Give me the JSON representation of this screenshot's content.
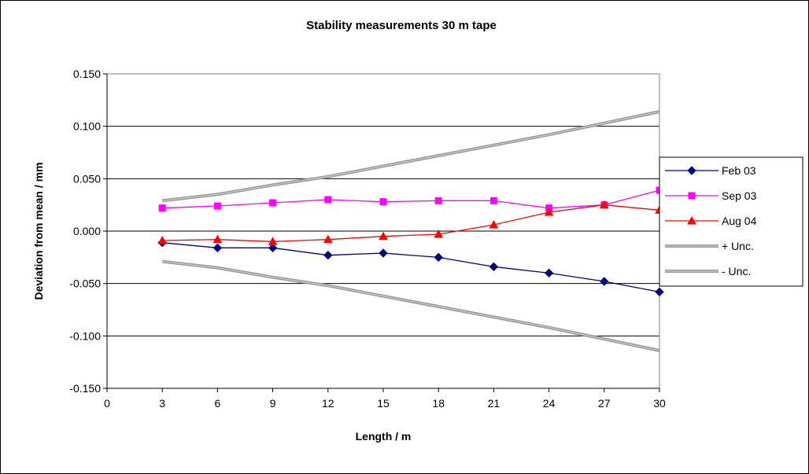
{
  "chart_data": {
    "type": "line",
    "title": "Stability measurements 30 m   tape",
    "xlabel": "Length / m",
    "ylabel": "Deviation from mean / mm",
    "xlim": [
      0,
      30
    ],
    "ylim": [
      -0.15,
      0.15
    ],
    "x_ticks": [
      "0",
      "3",
      "6",
      "9",
      "12",
      "15",
      "18",
      "21",
      "24",
      "27",
      "30"
    ],
    "y_ticks": [
      "0.150",
      "0.100",
      "0.050",
      "0.000",
      "-0.050",
      "-0.100",
      "-0.150"
    ],
    "y_tick_values": [
      0.15,
      0.1,
      0.05,
      0.0,
      -0.05,
      -0.1,
      -0.15
    ],
    "grid": "horizontal",
    "legend_position": "right",
    "x": [
      3,
      6,
      9,
      12,
      15,
      18,
      21,
      24,
      27,
      30
    ],
    "series": [
      {
        "name": "Feb 03",
        "color": "#000080",
        "marker": "diamond",
        "values": [
          -0.011,
          -0.016,
          -0.016,
          -0.023,
          -0.021,
          -0.025,
          -0.034,
          -0.04,
          -0.048,
          -0.058
        ]
      },
      {
        "name": "Sep 03",
        "color": "#ff00ff",
        "marker": "square",
        "values": [
          0.022,
          0.024,
          0.027,
          0.03,
          0.028,
          0.029,
          0.029,
          0.022,
          0.025,
          0.039
        ]
      },
      {
        "name": "Aug 04",
        "color": "#ff0000",
        "marker": "triangle",
        "values": [
          -0.009,
          -0.008,
          -0.01,
          -0.008,
          -0.005,
          -0.003,
          0.006,
          0.018,
          0.025,
          0.02
        ]
      },
      {
        "name": "+ Unc.",
        "color": "#9a9a9a",
        "marker": "none",
        "values": [
          0.029,
          0.035,
          0.044,
          0.052,
          0.062,
          0.072,
          0.082,
          0.092,
          0.103,
          0.114
        ]
      },
      {
        "name": "- Unc.",
        "color": "#9a9a9a",
        "marker": "none",
        "values": [
          -0.029,
          -0.035,
          -0.044,
          -0.052,
          -0.062,
          -0.072,
          -0.082,
          -0.092,
          -0.103,
          -0.114
        ]
      }
    ]
  }
}
